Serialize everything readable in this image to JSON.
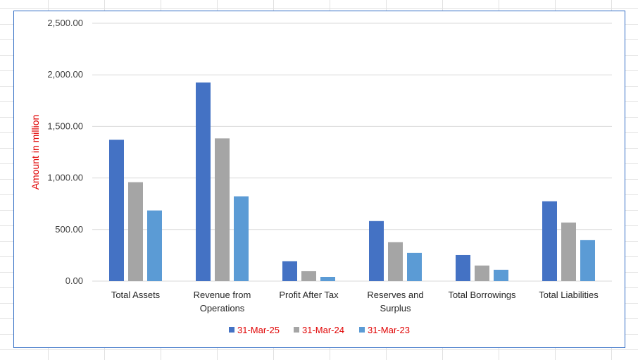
{
  "chart_data": {
    "type": "bar",
    "title": "",
    "xlabel": "",
    "ylabel": "Amount in million",
    "ylim": [
      0,
      2500
    ],
    "yticks": [
      0,
      500,
      1000,
      1500,
      2000,
      2500
    ],
    "ytick_labels": [
      "0.00",
      "500.00",
      "1,000.00",
      "1,500.00",
      "2,000.00",
      "2,500.00"
    ],
    "grid": true,
    "legend_position": "bottom",
    "categories": [
      [
        "Total Assets"
      ],
      [
        "Revenue from",
        "Operations"
      ],
      [
        "Profit After Tax"
      ],
      [
        "Reserves and",
        "Surplus"
      ],
      [
        "Total Borrowings"
      ],
      [
        "Total Liabilities"
      ]
    ],
    "series": [
      {
        "name": "31-Mar-25",
        "color": "#4472c4",
        "values": [
          1370,
          1925,
          192,
          582,
          253,
          774
        ]
      },
      {
        "name": "31-Mar-24",
        "color": "#a5a5a5",
        "values": [
          959,
          1384,
          96,
          377,
          151,
          568
        ]
      },
      {
        "name": "31-Mar-23",
        "color": "#5b9bd5",
        "values": [
          685,
          822,
          41,
          274,
          110,
          397
        ]
      }
    ]
  }
}
